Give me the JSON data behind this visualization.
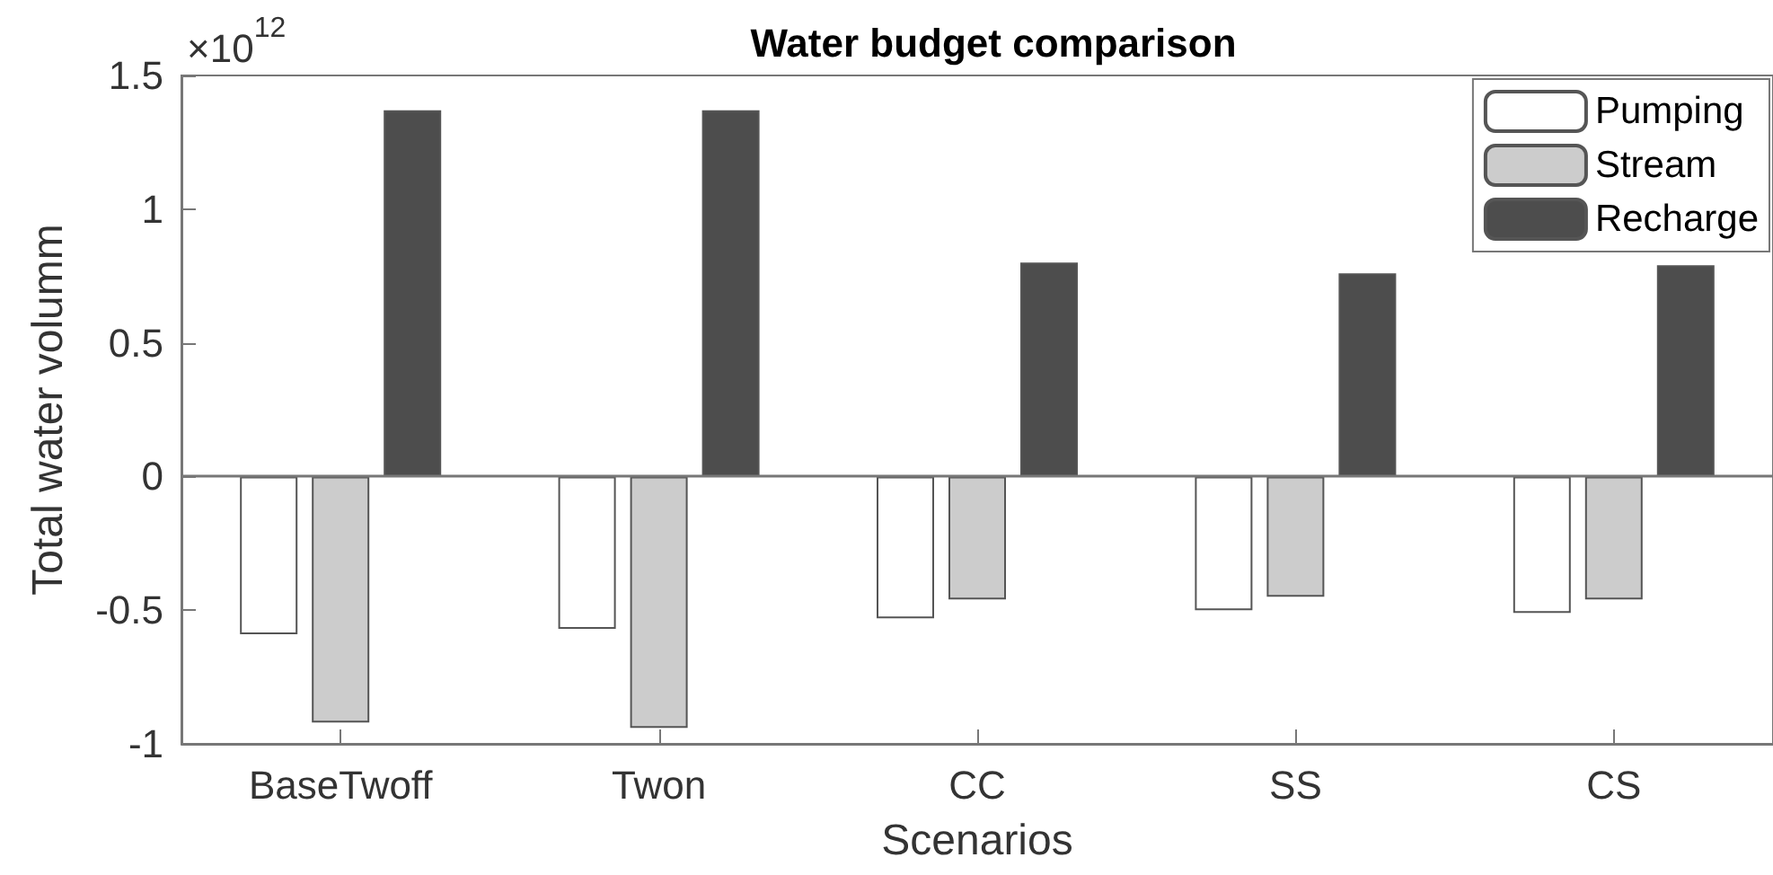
{
  "chart_data": {
    "type": "bar",
    "title": "Water budget comparison",
    "xlabel": "Scenarios",
    "ylabel": "Total water volumm",
    "annotations": [
      "×10$^{12}$"
    ],
    "categories": [
      "BaseTwoff",
      "Twon",
      "CC",
      "SS",
      "CS"
    ],
    "series": [
      {
        "name": "Pumping",
        "color": "#ffffff",
        "values": [
          -0.59,
          -0.57,
          -0.53,
          -0.5,
          -0.51
        ]
      },
      {
        "name": "Stream",
        "color": "#cccccc",
        "values": [
          -0.92,
          -0.94,
          -0.46,
          -0.45,
          -0.46
        ]
      },
      {
        "name": "Recharge",
        "color": "#4d4d4d",
        "values": [
          1.37,
          1.37,
          0.8,
          0.76,
          0.79
        ]
      }
    ],
    "ylim": [
      -1,
      1.5
    ],
    "yticks": [
      -1,
      -0.5,
      0,
      0.5,
      1,
      1.5
    ],
    "ref_lines": [
      {
        "axis": "y",
        "value": 0
      }
    ],
    "grid": false,
    "legend": "top right"
  }
}
